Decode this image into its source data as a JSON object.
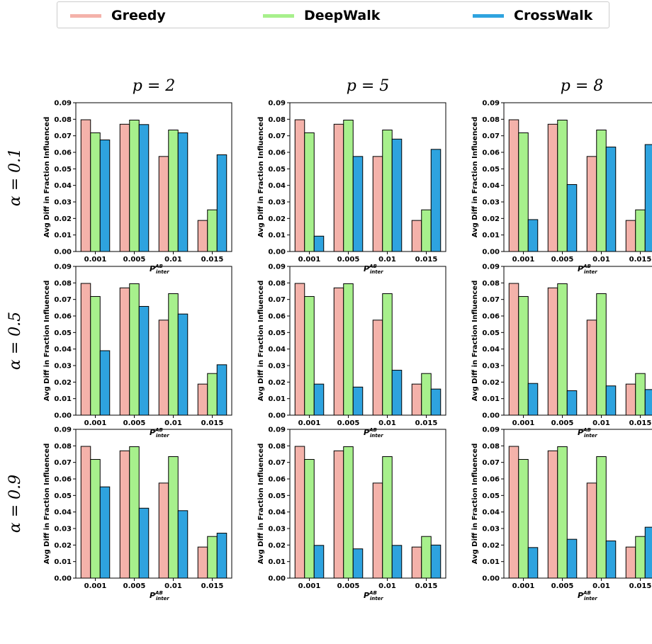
{
  "legend": {
    "items": [
      {
        "label": "Greedy",
        "color": "#f4b2aa"
      },
      {
        "label": "DeepWalk",
        "color": "#a7f08c"
      },
      {
        "label": "CrossWalk",
        "color": "#2ea3df"
      }
    ]
  },
  "grid": {
    "col_titles": [
      "p = 2",
      "p = 5",
      "p = 8"
    ],
    "row_titles": [
      "α = 0.1",
      "α = 0.5",
      "α = 0.9"
    ]
  },
  "chart_data": [
    {
      "type": "bar",
      "categories": [
        "0.001",
        "0.005",
        "0.01",
        "0.015"
      ],
      "xlabel": "P",
      "xlabel_sup": "AB",
      "xlabel_sub": "inter",
      "ylabel": "Avg Diff in Fraction Influenced",
      "ylim": [
        0,
        0.09
      ],
      "series": [
        {
          "name": "Greedy",
          "values": [
            0.0797,
            0.077,
            0.0575,
            0.0188
          ]
        },
        {
          "name": "DeepWalk",
          "values": [
            0.0718,
            0.0795,
            0.0735,
            0.0252
          ]
        },
        {
          "name": "CrossWalk",
          "values": [
            0.0675,
            0.0768,
            0.0718,
            0.0585
          ]
        }
      ]
    },
    {
      "type": "bar",
      "categories": [
        "0.001",
        "0.005",
        "0.01",
        "0.015"
      ],
      "xlabel": "P",
      "xlabel_sup": "AB",
      "xlabel_sub": "inter",
      "ylabel": "Avg Diff in Fraction Influenced",
      "ylim": [
        0,
        0.09
      ],
      "series": [
        {
          "name": "Greedy",
          "values": [
            0.0797,
            0.077,
            0.0575,
            0.0188
          ]
        },
        {
          "name": "DeepWalk",
          "values": [
            0.0718,
            0.0795,
            0.0735,
            0.0252
          ]
        },
        {
          "name": "CrossWalk",
          "values": [
            0.0093,
            0.0575,
            0.068,
            0.0618
          ]
        }
      ]
    },
    {
      "type": "bar",
      "categories": [
        "0.001",
        "0.005",
        "0.01",
        "0.015"
      ],
      "xlabel": "P",
      "xlabel_sup": "AB",
      "xlabel_sub": "inter",
      "ylabel": "Avg Diff in Fraction Influenced",
      "ylim": [
        0,
        0.09
      ],
      "series": [
        {
          "name": "Greedy",
          "values": [
            0.0797,
            0.077,
            0.0575,
            0.0188
          ]
        },
        {
          "name": "DeepWalk",
          "values": [
            0.0718,
            0.0795,
            0.0735,
            0.0252
          ]
        },
        {
          "name": "CrossWalk",
          "values": [
            0.0193,
            0.0405,
            0.0632,
            0.0647
          ]
        }
      ]
    },
    {
      "type": "bar",
      "categories": [
        "0.001",
        "0.005",
        "0.01",
        "0.015"
      ],
      "xlabel": "P",
      "xlabel_sup": "AB",
      "xlabel_sub": "inter",
      "ylabel": "Avg Diff in Fraction Influenced",
      "ylim": [
        0,
        0.09
      ],
      "series": [
        {
          "name": "Greedy",
          "values": [
            0.0797,
            0.077,
            0.0575,
            0.0188
          ]
        },
        {
          "name": "DeepWalk",
          "values": [
            0.0718,
            0.0795,
            0.0735,
            0.0252
          ]
        },
        {
          "name": "CrossWalk",
          "values": [
            0.039,
            0.0658,
            0.0612,
            0.0305
          ]
        }
      ]
    },
    {
      "type": "bar",
      "categories": [
        "0.001",
        "0.005",
        "0.01",
        "0.015"
      ],
      "xlabel": "P",
      "xlabel_sup": "AB",
      "xlabel_sub": "inter",
      "ylabel": "Avg Diff in Fraction Influenced",
      "ylim": [
        0,
        0.09
      ],
      "series": [
        {
          "name": "Greedy",
          "values": [
            0.0797,
            0.077,
            0.0575,
            0.0188
          ]
        },
        {
          "name": "DeepWalk",
          "values": [
            0.0718,
            0.0795,
            0.0735,
            0.0252
          ]
        },
        {
          "name": "CrossWalk",
          "values": [
            0.0188,
            0.017,
            0.0272,
            0.0158
          ]
        }
      ]
    },
    {
      "type": "bar",
      "categories": [
        "0.001",
        "0.005",
        "0.01",
        "0.015"
      ],
      "xlabel": "P",
      "xlabel_sup": "AB",
      "xlabel_sub": "inter",
      "ylabel": "Avg Diff in Fraction Influenced",
      "ylim": [
        0,
        0.09
      ],
      "series": [
        {
          "name": "Greedy",
          "values": [
            0.0797,
            0.077,
            0.0575,
            0.0188
          ]
        },
        {
          "name": "DeepWalk",
          "values": [
            0.0718,
            0.0795,
            0.0735,
            0.0252
          ]
        },
        {
          "name": "CrossWalk",
          "values": [
            0.0192,
            0.0148,
            0.0177,
            0.0155
          ]
        }
      ]
    },
    {
      "type": "bar",
      "categories": [
        "0.001",
        "0.005",
        "0.01",
        "0.015"
      ],
      "xlabel": "P",
      "xlabel_sup": "AB",
      "xlabel_sub": "inter",
      "ylabel": "Avg Diff in Fraction Influenced",
      "ylim": [
        0,
        0.09
      ],
      "series": [
        {
          "name": "Greedy",
          "values": [
            0.0797,
            0.077,
            0.0575,
            0.0188
          ]
        },
        {
          "name": "DeepWalk",
          "values": [
            0.0718,
            0.0795,
            0.0735,
            0.0252
          ]
        },
        {
          "name": "CrossWalk",
          "values": [
            0.0552,
            0.0423,
            0.0408,
            0.0272
          ]
        }
      ]
    },
    {
      "type": "bar",
      "categories": [
        "0.001",
        "0.005",
        "0.01",
        "0.015"
      ],
      "xlabel": "P",
      "xlabel_sup": "AB",
      "xlabel_sub": "inter",
      "ylabel": "Avg Diff in Fraction Influenced",
      "ylim": [
        0,
        0.09
      ],
      "series": [
        {
          "name": "Greedy",
          "values": [
            0.0797,
            0.077,
            0.0575,
            0.0188
          ]
        },
        {
          "name": "DeepWalk",
          "values": [
            0.0718,
            0.0795,
            0.0735,
            0.0252
          ]
        },
        {
          "name": "CrossWalk",
          "values": [
            0.0198,
            0.0177,
            0.0198,
            0.02
          ]
        }
      ]
    },
    {
      "type": "bar",
      "categories": [
        "0.001",
        "0.005",
        "0.01",
        "0.015"
      ],
      "xlabel": "P",
      "xlabel_sup": "AB",
      "xlabel_sub": "inter",
      "ylabel": "Avg Diff in Fraction Influenced",
      "ylim": [
        0,
        0.09
      ],
      "series": [
        {
          "name": "Greedy",
          "values": [
            0.0797,
            0.077,
            0.0575,
            0.0188
          ]
        },
        {
          "name": "DeepWalk",
          "values": [
            0.0718,
            0.0795,
            0.0735,
            0.0252
          ]
        },
        {
          "name": "CrossWalk",
          "values": [
            0.0185,
            0.0235,
            0.0225,
            0.0308
          ]
        }
      ]
    }
  ]
}
